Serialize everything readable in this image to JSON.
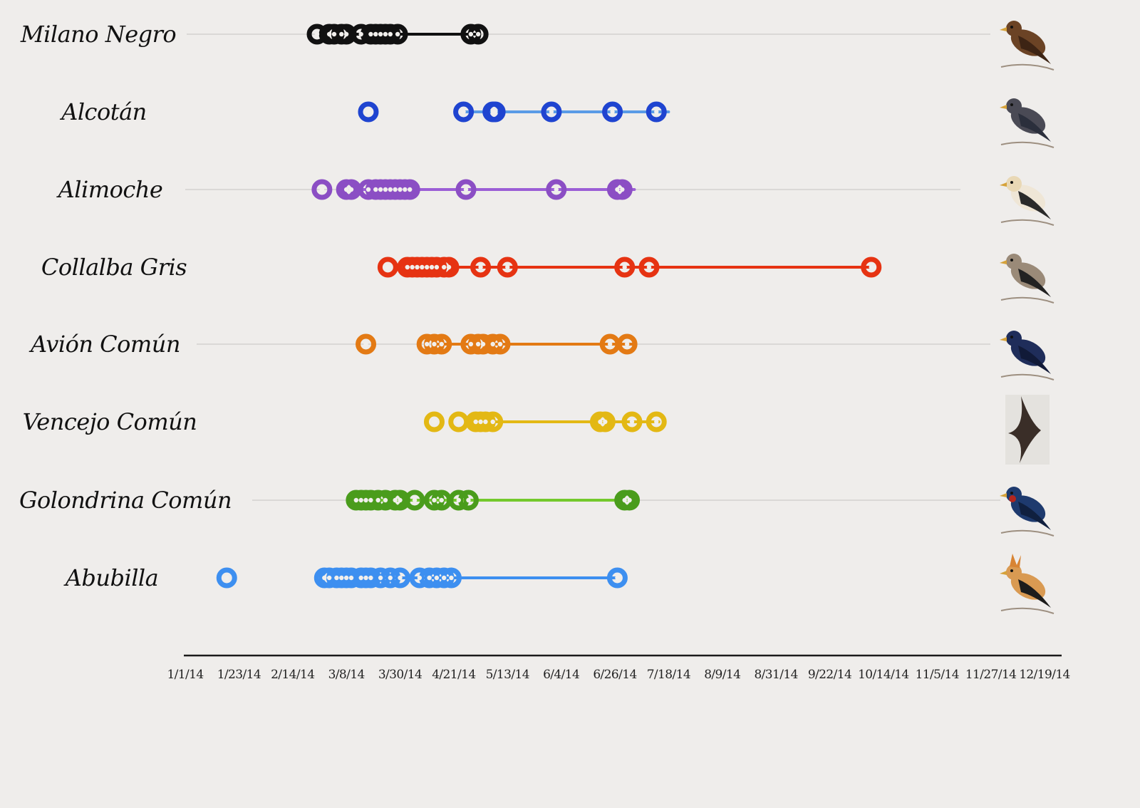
{
  "chart_data": {
    "type": "scatter",
    "title": "",
    "xlabel": "",
    "ylabel": "",
    "x_axis": {
      "kind": "date",
      "xlim": [
        "2014-01-01",
        "2014-12-20"
      ],
      "tick_dates": [
        "2014-01-01",
        "2014-01-23",
        "2014-02-14",
        "2014-03-08",
        "2014-03-30",
        "2014-04-21",
        "2014-05-13",
        "2014-06-04",
        "2014-06-26",
        "2014-07-18",
        "2014-08-09",
        "2014-08-31",
        "2014-09-22",
        "2014-10-14",
        "2014-11-05",
        "2014-11-27",
        "2014-12-19"
      ],
      "tick_labels": [
        "1/1/14",
        "1/23/14",
        "2/14/14",
        "3/8/14",
        "3/30/14",
        "4/21/14",
        "5/13/14",
        "6/4/14",
        "6/26/14",
        "7/18/14",
        "8/9/14",
        "8/31/14",
        "9/22/14",
        "10/14/14",
        "11/5/14",
        "11/27/14",
        "12/19/14"
      ]
    },
    "grid": false,
    "legend": "none",
    "series": [
      {
        "name": "Milano Negro",
        "color": "#111111",
        "line_color": "#111111",
        "icon": "black-kite-illustration",
        "guide_line": true,
        "range_line": [
          "2014-03-03",
          "2014-05-01"
        ],
        "dates": [
          "2014-02-24",
          "2014-03-01",
          "2014-03-03",
          "2014-03-06",
          "2014-03-08",
          "2014-03-14",
          "2014-03-18",
          "2014-03-20",
          "2014-03-22",
          "2014-03-24",
          "2014-03-26",
          "2014-03-29",
          "2014-04-28",
          "2014-05-01"
        ]
      },
      {
        "name": "Alcotán",
        "color": "#1f44d0",
        "line_color": "#5a9be6",
        "icon": "hobby-falcon-illustration",
        "guide_line": false,
        "range_line": [
          "2014-04-25",
          "2014-07-18"
        ],
        "dates": [
          "2014-03-17",
          "2014-04-25",
          "2014-05-07",
          "2014-05-08",
          "2014-05-31",
          "2014-06-25",
          "2014-07-13"
        ]
      },
      {
        "name": "Alimoche",
        "color": "#8b4ec4",
        "line_color": "#9b5ed6",
        "icon": "egyptian-vulture-illustration",
        "guide_line": true,
        "range_line": [
          "2014-03-10",
          "2014-07-04"
        ],
        "dates": [
          "2014-02-26",
          "2014-03-08",
          "2014-03-10",
          "2014-03-17",
          "2014-03-20",
          "2014-03-22",
          "2014-03-24",
          "2014-03-26",
          "2014-03-28",
          "2014-03-30",
          "2014-04-01",
          "2014-04-03",
          "2014-04-26",
          "2014-06-02",
          "2014-06-27",
          "2014-06-29"
        ]
      },
      {
        "name": "Collalba Gris",
        "color": "#e63312",
        "line_color": "#e63312",
        "icon": "northern-wheatear-illustration",
        "guide_line": false,
        "range_line": [
          "2014-04-05",
          "2014-10-09"
        ],
        "dates": [
          "2014-03-25",
          "2014-04-02",
          "2014-04-04",
          "2014-04-06",
          "2014-04-08",
          "2014-04-10",
          "2014-04-12",
          "2014-04-14",
          "2014-04-17",
          "2014-04-19",
          "2014-05-02",
          "2014-05-13",
          "2014-06-30",
          "2014-07-10",
          "2014-10-09"
        ]
      },
      {
        "name": "Avión Común",
        "color": "#e37a14",
        "line_color": "#e37a14",
        "icon": "house-martin-illustration",
        "guide_line": true,
        "range_line": [
          "2014-04-13",
          "2014-07-04"
        ],
        "dates": [
          "2014-03-16",
          "2014-04-10",
          "2014-04-13",
          "2014-04-16",
          "2014-04-28",
          "2014-05-01",
          "2014-05-03",
          "2014-05-07",
          "2014-05-10",
          "2014-06-24",
          "2014-07-01"
        ]
      },
      {
        "name": "Vencejo Común",
        "color": "#e3b814",
        "line_color": "#e3b814",
        "icon": "common-swift-illustration",
        "guide_line": false,
        "range_line": [
          "2014-04-26",
          "2014-07-14"
        ],
        "dates": [
          "2014-04-13",
          "2014-04-23",
          "2014-04-30",
          "2014-05-02",
          "2014-05-04",
          "2014-05-07",
          "2014-06-20",
          "2014-06-22",
          "2014-07-03",
          "2014-07-13"
        ]
      },
      {
        "name": "Golondrina Común",
        "color": "#4a9c1c",
        "line_color": "#74c92c",
        "icon": "barn-swallow-illustration",
        "guide_line": true,
        "range_line": [
          "2014-03-16",
          "2014-07-02"
        ],
        "dates": [
          "2014-03-12",
          "2014-03-14",
          "2014-03-16",
          "2014-03-18",
          "2014-03-21",
          "2014-03-24",
          "2014-03-28",
          "2014-03-30",
          "2014-04-05",
          "2014-04-13",
          "2014-04-16",
          "2014-04-23",
          "2014-04-27",
          "2014-06-30",
          "2014-07-02"
        ]
      },
      {
        "name": "Abubilla",
        "color": "#3d8ff0",
        "line_color": "#3d8ff0",
        "icon": "hoopoe-illustration",
        "guide_line": false,
        "range_line": [
          "2014-03-01",
          "2014-06-27"
        ],
        "dates": [
          "2014-01-18",
          "2014-02-27",
          "2014-03-01",
          "2014-03-04",
          "2014-03-06",
          "2014-03-08",
          "2014-03-10",
          "2014-03-14",
          "2014-03-16",
          "2014-03-18",
          "2014-03-22",
          "2014-03-26",
          "2014-03-30",
          "2014-04-07",
          "2014-04-11",
          "2014-04-14",
          "2014-04-17",
          "2014-04-20",
          "2014-06-27"
        ]
      }
    ]
  }
}
